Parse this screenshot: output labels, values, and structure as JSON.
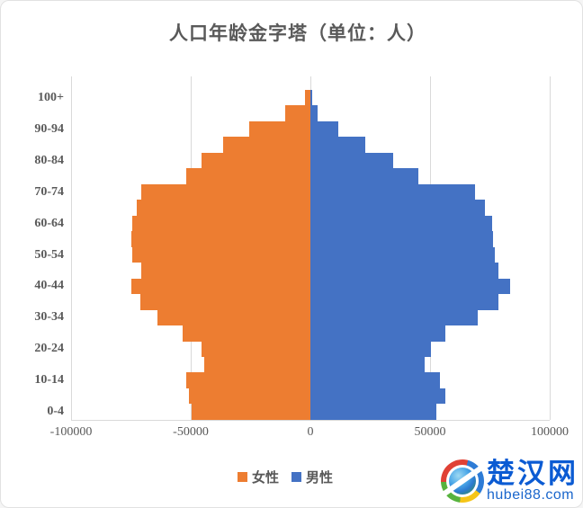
{
  "title": "人口年龄金字塔（单位：人）",
  "colors": {
    "female": "#ED7D31",
    "male": "#4472C4",
    "gridline": "#D9D9D9",
    "axis_text": "#595959"
  },
  "legend": {
    "female_label": "女性",
    "male_label": "男性"
  },
  "watermark": {
    "site_name": "楚汉网",
    "site_url": "hubei88.com"
  },
  "chart_data": {
    "type": "bar",
    "subtype": "population-pyramid-horizontal",
    "title": "人口年龄金字塔（单位：人）",
    "categories_top_to_bottom": [
      "100+",
      "95-99",
      "90-94",
      "85-89",
      "80-84",
      "75-79",
      "70-74",
      "65-69",
      "60-64",
      "55-59",
      "50-54",
      "45-49",
      "40-44",
      "35-39",
      "30-34",
      "25-29",
      "20-24",
      "15-19",
      "10-14",
      "5-9",
      "0-4"
    ],
    "y_tick_labels_shown": [
      "100+",
      "90-94",
      "80-84",
      "70-74",
      "60-64",
      "50-54",
      "40-44",
      "30-34",
      "20-24",
      "10-14",
      "0-4"
    ],
    "x_ticks": [
      {
        "label": "-100000",
        "value": -100000
      },
      {
        "label": "-50000",
        "value": -50000
      },
      {
        "label": "0",
        "value": 0
      },
      {
        "label": "50000",
        "value": 50000
      },
      {
        "label": "100000",
        "value": 100000
      }
    ],
    "xlim": [
      -100000,
      100000
    ],
    "grid": true,
    "legend_position": "bottom",
    "series": [
      {
        "name": "女性",
        "side": "left",
        "color": "#ED7D31",
        "values": [
          2400,
          10600,
          25400,
          36400,
          45600,
          51800,
          70500,
          72700,
          74400,
          74700,
          74500,
          70500,
          74700,
          71000,
          64000,
          53500,
          45500,
          44500,
          52000,
          50800,
          49700
        ]
      },
      {
        "name": "男性",
        "side": "right",
        "color": "#4472C4",
        "values": [
          800,
          3000,
          11500,
          23000,
          34400,
          45000,
          68900,
          72900,
          76000,
          76500,
          77200,
          78500,
          83500,
          78500,
          70000,
          56300,
          50200,
          47700,
          54200,
          56300,
          52600
        ]
      }
    ]
  }
}
